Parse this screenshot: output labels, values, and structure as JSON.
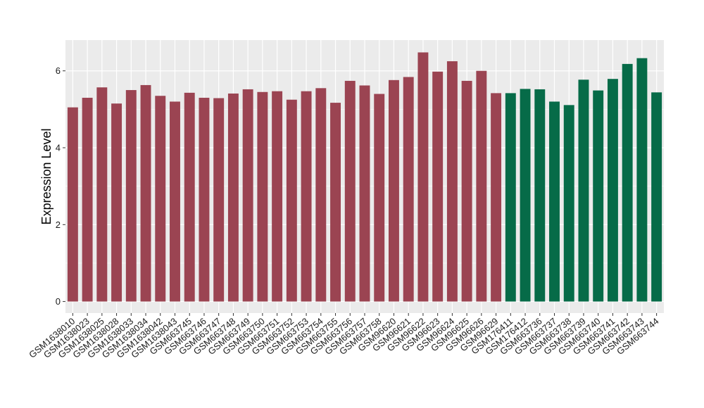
{
  "chart_data": {
    "type": "bar",
    "title": "",
    "xlabel": "",
    "ylabel": "Expression Level",
    "ylim": [
      -0.3,
      6.8
    ],
    "yticks": [
      0,
      2,
      4,
      6
    ],
    "grid": true,
    "legend": "none",
    "categories": [
      "GSM1638010",
      "GSM1638023",
      "GSM1638025",
      "GSM1638028",
      "GSM1638033",
      "GSM1638034",
      "GSM1638042",
      "GSM1638043",
      "GSM663745",
      "GSM663746",
      "GSM663747",
      "GSM663748",
      "GSM663749",
      "GSM663750",
      "GSM663751",
      "GSM663752",
      "GSM663753",
      "GSM663754",
      "GSM663755",
      "GSM663756",
      "GSM663757",
      "GSM663758",
      "GSM96620",
      "GSM96621",
      "GSM96622",
      "GSM96623",
      "GSM96624",
      "GSM96625",
      "GSM96626",
      "GSM96629",
      "GSM176411",
      "GSM176412",
      "GSM663736",
      "GSM663737",
      "GSM663738",
      "GSM663739",
      "GSM663740",
      "GSM663741",
      "GSM663742",
      "GSM663743",
      "GSM663744"
    ],
    "values": [
      5.05,
      5.3,
      5.57,
      5.15,
      5.5,
      5.63,
      5.35,
      5.2,
      5.43,
      5.3,
      5.29,
      5.41,
      5.52,
      5.45,
      5.47,
      5.25,
      5.47,
      5.55,
      5.17,
      5.74,
      5.62,
      5.4,
      5.76,
      5.84,
      6.48,
      5.98,
      6.25,
      5.74,
      6.0,
      5.42,
      5.42,
      5.53,
      5.52,
      5.2,
      5.11,
      5.77,
      5.49,
      5.79,
      6.18,
      6.33,
      5.44
    ],
    "groups": [
      0,
      0,
      0,
      0,
      0,
      0,
      0,
      0,
      0,
      0,
      0,
      0,
      0,
      0,
      0,
      0,
      0,
      0,
      0,
      0,
      0,
      0,
      0,
      0,
      0,
      0,
      0,
      0,
      0,
      0,
      1,
      1,
      1,
      1,
      1,
      1,
      1,
      1,
      1,
      1,
      1
    ],
    "colors": [
      "#9B4452",
      "#066B48"
    ],
    "panel_color": "#EBEBEB",
    "grid_color": "#FFFFFF"
  }
}
